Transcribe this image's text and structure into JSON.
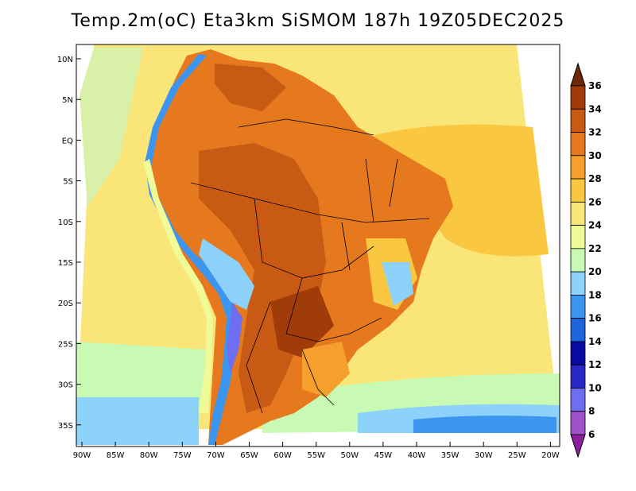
{
  "title": "Temp.2m(oC) Eta3km SiSMOM 187h 19Z05DEC2025",
  "map": {
    "lat_ticks": [
      "10N",
      "5N",
      "EQ",
      "5S",
      "10S",
      "15S",
      "20S",
      "25S",
      "30S",
      "35S"
    ],
    "lon_ticks": [
      "90W",
      "85W",
      "80W",
      "75W",
      "70W",
      "65W",
      "60W",
      "55W",
      "50W",
      "45W",
      "40W",
      "35W",
      "30W",
      "25W",
      "20W"
    ]
  },
  "colorbar": {
    "labels": [
      "6",
      "8",
      "10",
      "12",
      "14",
      "16",
      "18",
      "20",
      "22",
      "24",
      "26",
      "28",
      "30",
      "32",
      "34",
      "36"
    ],
    "colors": [
      "#8c1ea0",
      "#a050c8",
      "#6e6ef0",
      "#2828c8",
      "#0a0aa0",
      "#1e64dc",
      "#3c96f0",
      "#8cd2fa",
      "#c8fab4",
      "#f0fa96",
      "#fae678",
      "#fac840",
      "#f5a02d",
      "#e6781e",
      "#c85a14",
      "#a03c0a",
      "#6e2805"
    ]
  }
}
